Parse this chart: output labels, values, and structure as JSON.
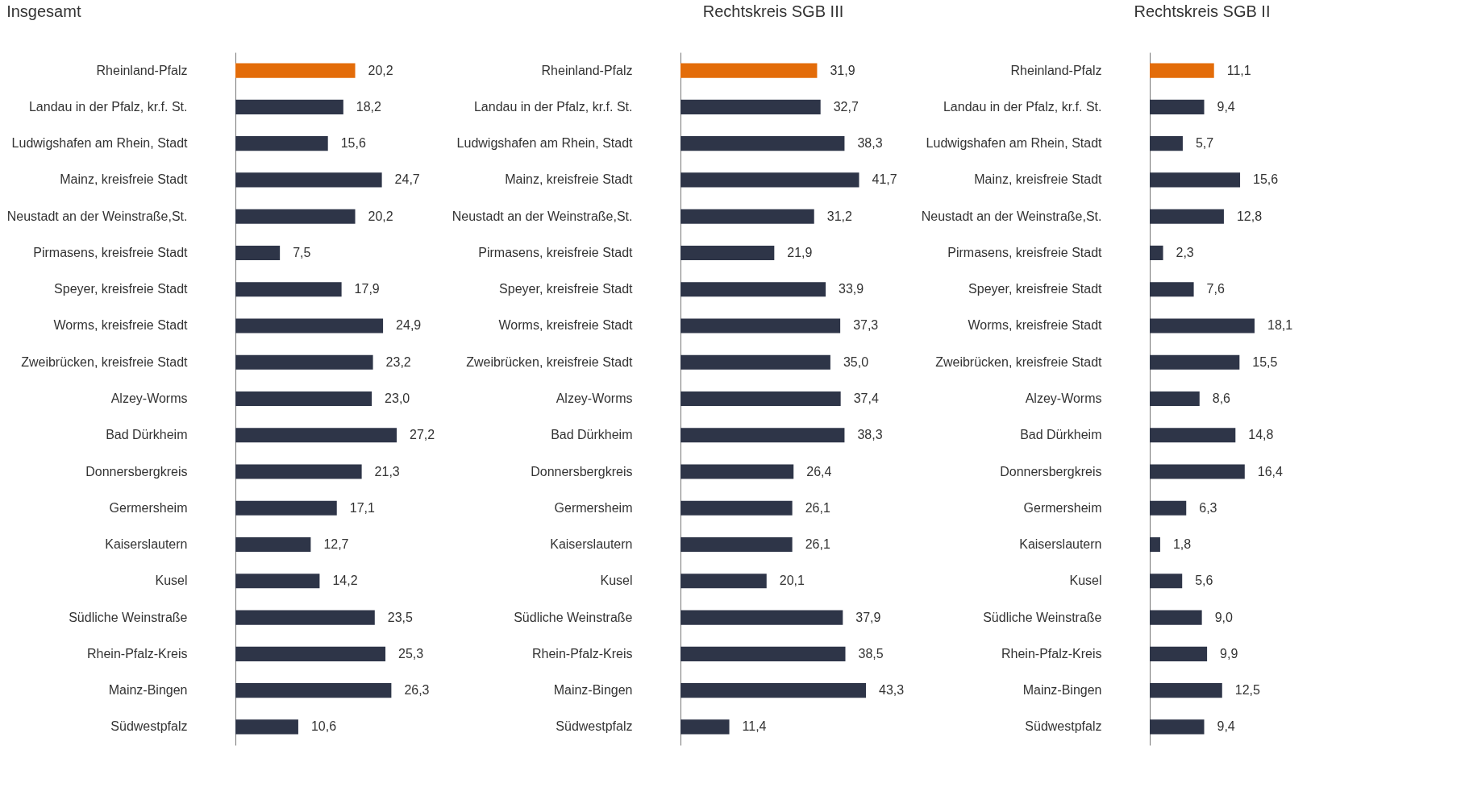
{
  "chart_data": [
    {
      "type": "bar",
      "orientation": "horizontal",
      "title": "Insgesamt",
      "categories": [
        "Rheinland-Pfalz",
        "Landau in der Pfalz, kr.f. St.",
        "Ludwigshafen am Rhein, Stadt",
        "Mainz, kreisfreie Stadt",
        "Neustadt an der Weinstraße,St.",
        "Pirmasens, kreisfreie Stadt",
        "Speyer, kreisfreie Stadt",
        "Worms, kreisfreie Stadt",
        "Zweibrücken, kreisfreie Stadt",
        "Alzey-Worms",
        "Bad Dürkheim",
        "Donnersbergkreis",
        "Germersheim",
        "Kaiserslautern",
        "Kusel",
        "Südliche Weinstraße",
        "Rhein-Pfalz-Kreis",
        "Mainz-Bingen",
        "Südwestpfalz"
      ],
      "values": [
        20.2,
        18.2,
        15.6,
        24.7,
        20.2,
        7.5,
        17.9,
        24.9,
        23.2,
        23.0,
        27.2,
        21.3,
        17.1,
        12.7,
        14.2,
        23.5,
        25.3,
        26.3,
        10.6
      ],
      "value_labels": [
        "20,2",
        "18,2",
        "15,6",
        "24,7",
        "20,2",
        "7,5",
        "17,9",
        "24,9",
        "23,2",
        "23,0",
        "27,2",
        "21,3",
        "17,1",
        "12,7",
        "14,2",
        "23,5",
        "25,3",
        "26,3",
        "10,6"
      ],
      "colors": [
        "#e36c09",
        "#2e3548",
        "#2e3548",
        "#2e3548",
        "#2e3548",
        "#2e3548",
        "#2e3548",
        "#2e3548",
        "#2e3548",
        "#2e3548",
        "#2e3548",
        "#2e3548",
        "#2e3548",
        "#2e3548",
        "#2e3548",
        "#2e3548",
        "#2e3548",
        "#2e3548",
        "#2e3548"
      ]
    },
    {
      "type": "bar",
      "orientation": "horizontal",
      "title": "Rechtskreis SGB III",
      "categories": [
        "Rheinland-Pfalz",
        "Landau in der Pfalz, kr.f. St.",
        "Ludwigshafen am Rhein, Stadt",
        "Mainz, kreisfreie Stadt",
        "Neustadt an der Weinstraße,St.",
        "Pirmasens, kreisfreie Stadt",
        "Speyer, kreisfreie Stadt",
        "Worms, kreisfreie Stadt",
        "Zweibrücken, kreisfreie Stadt",
        "Alzey-Worms",
        "Bad Dürkheim",
        "Donnersbergkreis",
        "Germersheim",
        "Kaiserslautern",
        "Kusel",
        "Südliche Weinstraße",
        "Rhein-Pfalz-Kreis",
        "Mainz-Bingen",
        "Südwestpfalz"
      ],
      "values": [
        31.9,
        32.7,
        38.3,
        41.7,
        31.2,
        21.9,
        33.9,
        37.3,
        35.0,
        37.4,
        38.3,
        26.4,
        26.1,
        26.1,
        20.1,
        37.9,
        38.5,
        43.3,
        11.4
      ],
      "value_labels": [
        "31,9",
        "32,7",
        "38,3",
        "41,7",
        "31,2",
        "21,9",
        "33,9",
        "37,3",
        "35,0",
        "37,4",
        "38,3",
        "26,4",
        "26,1",
        "26,1",
        "20,1",
        "37,9",
        "38,5",
        "43,3",
        "11,4"
      ],
      "colors": [
        "#e36c09",
        "#2e3548",
        "#2e3548",
        "#2e3548",
        "#2e3548",
        "#2e3548",
        "#2e3548",
        "#2e3548",
        "#2e3548",
        "#2e3548",
        "#2e3548",
        "#2e3548",
        "#2e3548",
        "#2e3548",
        "#2e3548",
        "#2e3548",
        "#2e3548",
        "#2e3548",
        "#2e3548"
      ]
    },
    {
      "type": "bar",
      "orientation": "horizontal",
      "title": "Rechtskreis SGB II",
      "categories": [
        "Rheinland-Pfalz",
        "Landau in der Pfalz, kr.f. St.",
        "Ludwigshafen am Rhein, Stadt",
        "Mainz, kreisfreie Stadt",
        "Neustadt an der Weinstraße,St.",
        "Pirmasens, kreisfreie Stadt",
        "Speyer, kreisfreie Stadt",
        "Worms, kreisfreie Stadt",
        "Zweibrücken, kreisfreie Stadt",
        "Alzey-Worms",
        "Bad Dürkheim",
        "Donnersbergkreis",
        "Germersheim",
        "Kaiserslautern",
        "Kusel",
        "Südliche Weinstraße",
        "Rhein-Pfalz-Kreis",
        "Mainz-Bingen",
        "Südwestpfalz"
      ],
      "values": [
        11.1,
        9.4,
        5.7,
        15.6,
        12.8,
        2.3,
        7.6,
        18.1,
        15.5,
        8.6,
        14.8,
        16.4,
        6.3,
        1.8,
        5.6,
        9.0,
        9.9,
        12.5,
        9.4
      ],
      "value_labels": [
        "11,1",
        "9,4",
        "5,7",
        "15,6",
        "12,8",
        "2,3",
        "7,6",
        "18,1",
        "15,5",
        "8,6",
        "14,8",
        "16,4",
        "6,3",
        "1,8",
        "5,6",
        "9,0",
        "9,9",
        "12,5",
        "9,4"
      ],
      "colors": [
        "#e36c09",
        "#2e3548",
        "#2e3548",
        "#2e3548",
        "#2e3548",
        "#2e3548",
        "#2e3548",
        "#2e3548",
        "#2e3548",
        "#2e3548",
        "#2e3548",
        "#2e3548",
        "#2e3548",
        "#2e3548",
        "#2e3548",
        "#2e3548",
        "#2e3548",
        "#2e3548",
        "#2e3548"
      ]
    }
  ]
}
